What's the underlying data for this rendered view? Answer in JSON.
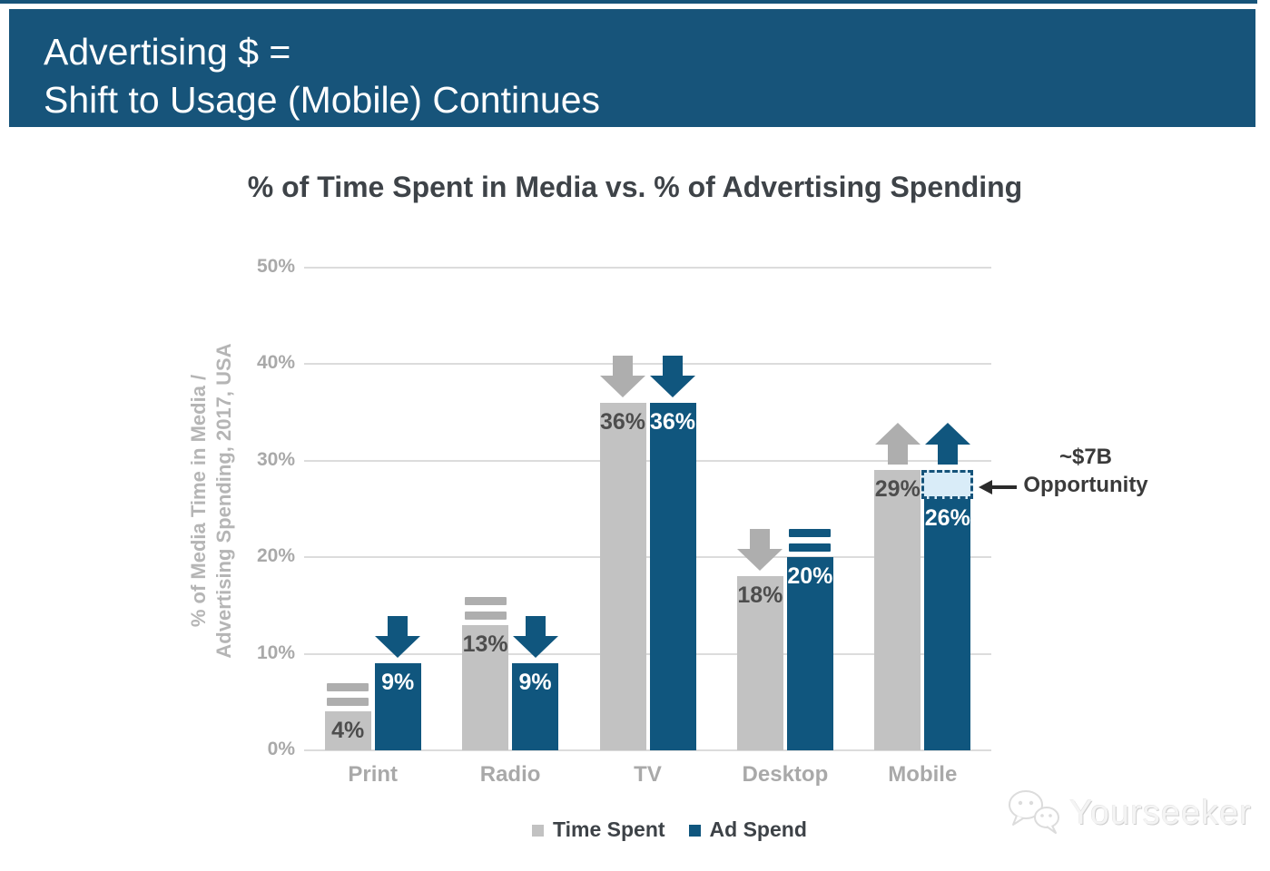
{
  "banner": {
    "line1": "Advertising $ =",
    "line2": "Shift to Usage (Mobile) Continues",
    "bg": "#17547a",
    "text_color": "#ffffff"
  },
  "watermark": {
    "text": "Yourseeker",
    "logo": "chat-bubbles-icon",
    "color": "#dcdcdc"
  },
  "chart_data": {
    "type": "bar",
    "title": "% of Time Spent in Media vs. % of Advertising Spending",
    "ylabel_lines": [
      "% of Media Time in Media /",
      "Advertising Spending, 2017, USA"
    ],
    "categories": [
      "Print",
      "Radio",
      "TV",
      "Desktop",
      "Mobile"
    ],
    "series": [
      {
        "name": "Time Spent",
        "color": "#c2c2c2",
        "trend_color": "#aeaeae",
        "label_color": "#4d4d4d",
        "values": [
          4,
          13,
          36,
          18,
          29
        ],
        "trends": [
          "equal",
          "equal",
          "down",
          "down",
          "up"
        ]
      },
      {
        "name": "Ad Spend",
        "color": "#10567e",
        "trend_color": "#10567e",
        "label_color": "#ffffff",
        "values": [
          9,
          9,
          36,
          20,
          26
        ],
        "trends": [
          "down",
          "down",
          "down",
          "equal",
          "up"
        ]
      }
    ],
    "yticks": [
      0,
      10,
      20,
      30,
      40,
      50
    ],
    "ylim": [
      0,
      50
    ],
    "grid": true,
    "legend_position": "bottom",
    "tick_suffix": "%",
    "annotation": {
      "line1": "~$7B",
      "line2": "Opportunity",
      "category": "Mobile",
      "series": "Ad Spend",
      "gap_top_value": 29,
      "box_fill": "#d9ecf8",
      "box_border": "#15537a",
      "arrow_color": "#2b2b2b"
    }
  }
}
